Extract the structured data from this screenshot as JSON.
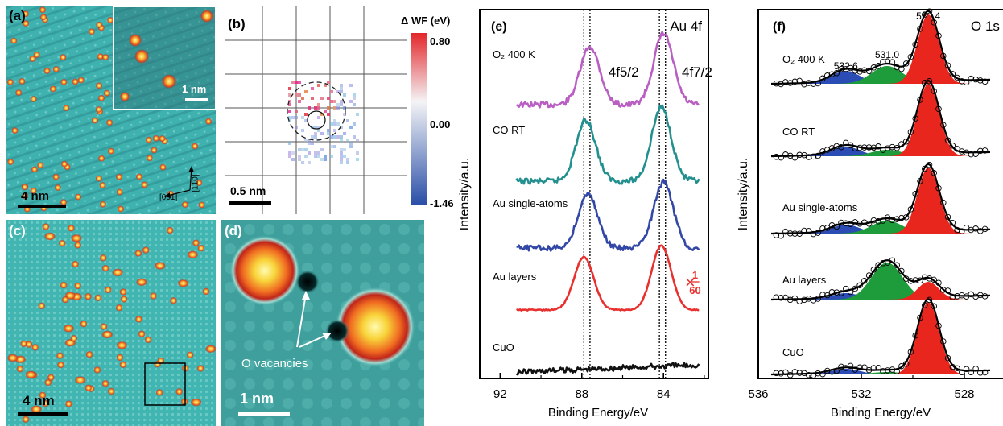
{
  "panels": {
    "a": {
      "label": "(a)",
      "scale": "4 nm",
      "inset_scale": "1 nm",
      "dir1": "[001]",
      "dir2": "[1̄10]"
    },
    "b": {
      "label": "(b)",
      "scale": "0.5 nm",
      "colorbar_title": "Δ WF (eV)",
      "colorbar_ticks": [
        "0.80",
        "0.00",
        "-1.46"
      ]
    },
    "c": {
      "label": "(c)",
      "scale": "4 nm"
    },
    "d": {
      "label": "(d)",
      "scale": "1 nm",
      "annotation": "O vacancies"
    }
  },
  "chart_data": [
    {
      "type": "line",
      "panel": "(e)",
      "title": "Au 4f",
      "xlabel": "Binding Energy/eV",
      "ylabel": "Intensity/a.u.",
      "xlim": [
        93,
        81.8
      ],
      "x_ticks": [
        "92",
        "88",
        "84"
      ],
      "peak_labels": [
        "4f5/2",
        "4f7/2"
      ],
      "scale_note_prefix": "×",
      "scale_note_num": "1",
      "scale_note_den": "60",
      "reference_lines": [
        87.9,
        87.6,
        84.2,
        83.9
      ],
      "series": [
        {
          "name": "O₂ 400 K",
          "color": "#b95fc4"
        },
        {
          "name": "CO RT",
          "color": "#23908f"
        },
        {
          "name": "Au single-atoms",
          "color": "#3347a6"
        },
        {
          "name": "Au layers",
          "color": "#e8302e"
        },
        {
          "name": "CuO",
          "color": "#111111"
        }
      ]
    },
    {
      "type": "area",
      "panel": "(f)",
      "title": "O 1s",
      "xlabel": "Binding Energy/eV",
      "ylabel": "Intensity/a.u.",
      "xlim": [
        536,
        526.5
      ],
      "x_ticks": [
        "536",
        "532",
        "528"
      ],
      "peak_positions": [
        "532.6",
        "531.0",
        "529.4"
      ],
      "component_colors": {
        "532.6": "#2b4bb5",
        "531.0": "#1e9b3a",
        "529.4": "#e8261e"
      },
      "series": [
        {
          "name": "O₂ 400 K"
        },
        {
          "name": "CO RT"
        },
        {
          "name": "Au single-atoms"
        },
        {
          "name": "Au layers"
        },
        {
          "name": "CuO"
        }
      ]
    }
  ]
}
